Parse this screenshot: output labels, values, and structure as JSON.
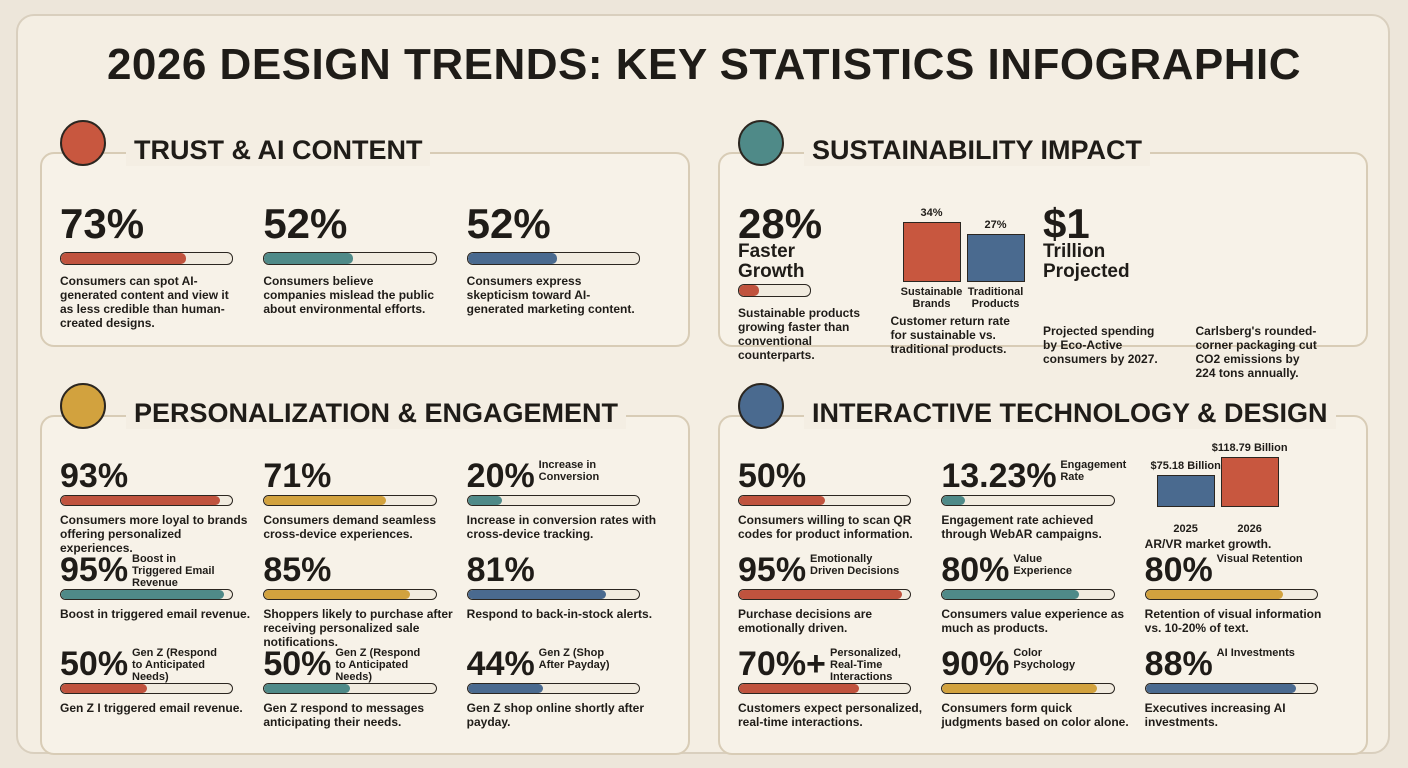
{
  "title": "2026 DESIGN TRENDS: KEY STATISTICS INFOGRAPHIC",
  "sections": [
    {
      "heading": "TRUST & AI CONTENT",
      "columns": 3,
      "stats": [
        {
          "label": "73%",
          "value": 73,
          "color": "#c0533e",
          "text": "Consumers can spot AI-generated content and view it as less credible than human-created designs."
        },
        {
          "label": "52%",
          "value": 52,
          "color": "#4f8a88",
          "text": "Consumers believe companies mislead the public about environmental efforts."
        },
        {
          "label": "52%",
          "value": 52,
          "color": "#4a6a8f",
          "text": "Consumers express skepticism toward AI-generated marketing content."
        }
      ]
    },
    {
      "heading": "SUSTAINABILITY IMPACT",
      "columns": 4,
      "stats": [
        {
          "label": "28%",
          "caption": "Faster Growth",
          "value": 28,
          "color": "#c0533e",
          "text": "Sustainable products growing faster than conventional counterparts."
        },
        {
          "bars": [
            {
              "name": "Sustainable Brands",
              "label": "34%",
              "value": 34,
              "color": "#c8573f"
            },
            {
              "name": "Traditional Products",
              "label": "27%",
              "value": 27,
              "color": "#4a6a8f"
            }
          ],
          "text": "Customer return rate for sustainable vs. traditional products."
        },
        {
          "label": "$1",
          "caption": "Trillion Projected",
          "text": "Projected spending by Eco-Active consumers by 2027."
        },
        {
          "text": "Carlsberg's rounded-corner packaging cut CO2 emissions by 224 tons annually."
        }
      ]
    },
    {
      "heading": "PERSONALIZATION & ENGAGEMENT",
      "columns": 3,
      "stats": [
        {
          "label": "93%",
          "value": 93,
          "color": "#c0533e",
          "text": "Consumers more loyal to brands offering personalized experiences."
        },
        {
          "label": "71%",
          "value": 71,
          "color": "#d2a23e",
          "text": "Consumers demand seamless cross-device experiences."
        },
        {
          "label": "20%",
          "caption": "Increase in Conversion",
          "value": 20,
          "color": "#4f8a88",
          "text": "Increase in conversion rates with cross-device tracking."
        },
        {
          "label": "95%",
          "caption": "Boost in Triggered Email Revenue",
          "value": 95,
          "color": "#4f8a88",
          "text": "Boost in triggered email revenue."
        },
        {
          "label": "85%",
          "value": 85,
          "color": "#d2a23e",
          "text": "Shoppers likely to purchase after receiving personalized sale notifications."
        },
        {
          "label": "81%",
          "value": 81,
          "color": "#4a6a8f",
          "text": "Respond to back-in-stock alerts."
        },
        {
          "label": "50%",
          "caption": "Gen Z (Respond to Anticipated Needs)",
          "value": 50,
          "color": "#c0533e",
          "text": "Gen Z I triggered email revenue."
        },
        {
          "label": "50%",
          "caption": "Gen Z (Respond to Anticipated Needs)",
          "value": 50,
          "color": "#4f8a88",
          "text": "Gen Z respond to messages anticipating their needs."
        },
        {
          "label": "44%",
          "caption": "Gen Z (Shop After Payday)",
          "value": 44,
          "color": "#4a6a8f",
          "text": "Gen Z shop online shortly after payday."
        }
      ]
    },
    {
      "heading": "INTERACTIVE TECHNOLOGY & DESIGN",
      "columns": 3,
      "stats": [
        {
          "label": "50%",
          "value": 50,
          "color": "#c0533e",
          "text": "Consumers willing to scan QR codes for product information."
        },
        {
          "label": "13.23%",
          "caption": "Engagement Rate",
          "value": 13.23,
          "color": "#4f8a88",
          "text": "Engagement rate achieved through WebAR campaigns."
        },
        {
          "bars": [
            {
              "name": "2025",
              "label": "$75.18 Billion",
              "value": 75.18,
              "color": "#4a6a8f"
            },
            {
              "name": "2026",
              "label": "$118.79 Billion",
              "value": 118.79,
              "color": "#c8573f"
            }
          ],
          "text": "AR/VR market growth."
        },
        {
          "label": "95%",
          "caption": "Emotionally Driven Decisions",
          "value": 95,
          "color": "#c0533e",
          "text": "Purchase decisions are emotionally driven."
        },
        {
          "label": "80%",
          "caption": "Value Experience",
          "value": 80,
          "color": "#4f8a88",
          "text": "Consumers value experience as much as products."
        },
        {
          "label": "80%",
          "caption": "Visual Retention",
          "value": 80,
          "color": "#d2a23e",
          "text": "Retention of visual information vs. 10-20% of text."
        },
        {
          "label": "70%+",
          "caption": "Personalized, Real-Time Interactions",
          "value": 70,
          "color": "#c0533e",
          "text": "Customers expect personalized, real-time interactions."
        },
        {
          "label": "90%",
          "caption": "Color Psychology",
          "value": 90,
          "color": "#d2a23e",
          "text": "Consumers form quick judgments based on color alone."
        },
        {
          "label": "88%",
          "caption": "AI Investments",
          "value": 88,
          "color": "#4a6a8f",
          "text": "Executives increasing AI investments."
        }
      ]
    }
  ]
}
